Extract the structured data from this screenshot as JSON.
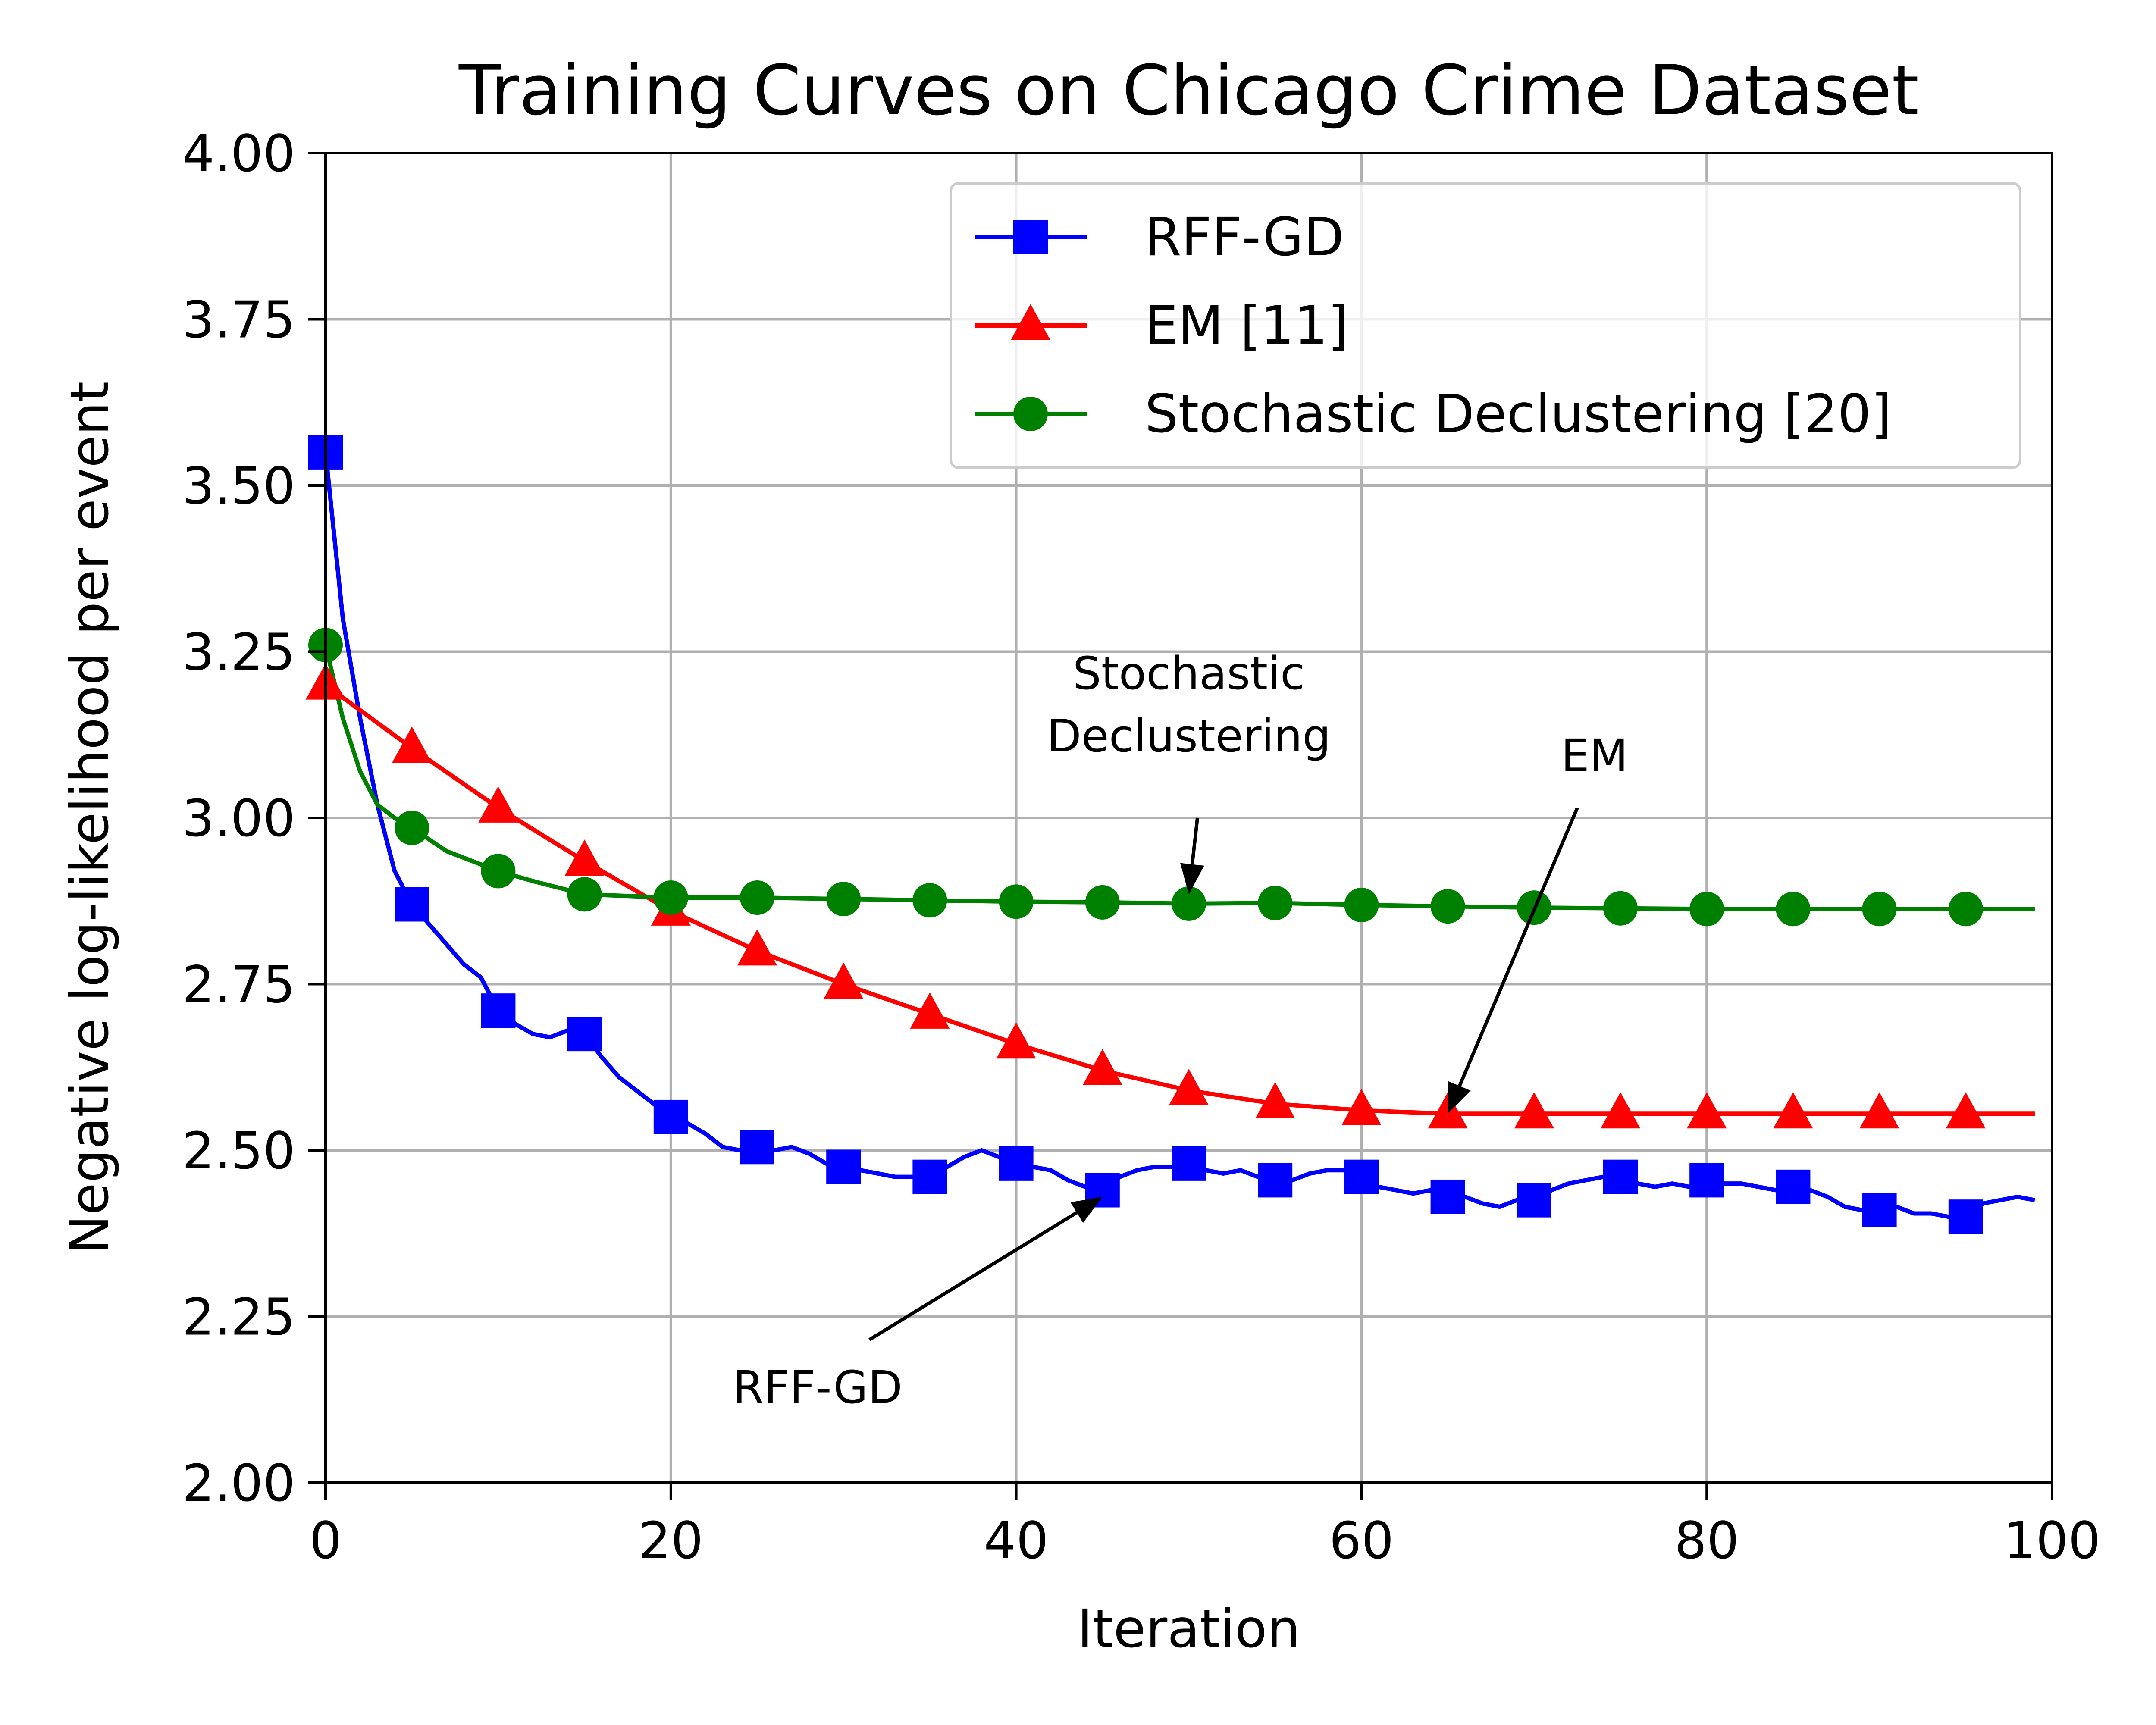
{
  "chart_data": {
    "type": "line",
    "title": "Training Curves on Chicago Crime Dataset",
    "xlabel": "Iteration",
    "ylabel": "Negative log-likelihood per event",
    "xlim": [
      0,
      100
    ],
    "ylim": [
      2.0,
      4.0
    ],
    "xticks": [
      0,
      20,
      40,
      60,
      80,
      100
    ],
    "xtick_labels": [
      "0",
      "20",
      "40",
      "60",
      "80",
      "100"
    ],
    "yticks": [
      2.0,
      2.25,
      2.5,
      2.75,
      3.0,
      3.25,
      3.5,
      3.75,
      4.0
    ],
    "ytick_labels": [
      "2.00",
      "2.25",
      "2.50",
      "2.75",
      "3.00",
      "3.25",
      "3.50",
      "3.75",
      "4.00"
    ],
    "grid": true,
    "legend_position": "top-right",
    "series": [
      {
        "name": "RFF-GD",
        "color": "#0000ff",
        "marker": "square",
        "x": [
          0,
          1,
          2,
          3,
          4,
          5,
          6,
          7,
          8,
          9,
          10,
          11,
          12,
          13,
          14,
          15,
          16,
          17,
          18,
          19,
          20,
          21,
          22,
          23,
          24,
          25,
          26,
          27,
          28,
          29,
          30,
          31,
          32,
          33,
          34,
          35,
          36,
          37,
          38,
          39,
          40,
          41,
          42,
          43,
          44,
          45,
          46,
          47,
          48,
          49,
          50,
          51,
          52,
          53,
          54,
          55,
          56,
          57,
          58,
          59,
          60,
          61,
          62,
          63,
          64,
          65,
          66,
          67,
          68,
          69,
          70,
          71,
          72,
          73,
          74,
          75,
          76,
          77,
          78,
          79,
          80,
          81,
          82,
          83,
          84,
          85,
          86,
          87,
          88,
          89,
          90,
          91,
          92,
          93,
          94,
          95,
          96,
          97,
          98,
          99
        ],
        "y": [
          3.55,
          3.3,
          3.15,
          3.02,
          2.92,
          2.87,
          2.84,
          2.81,
          2.78,
          2.76,
          2.71,
          2.69,
          2.675,
          2.67,
          2.68,
          2.675,
          2.64,
          2.61,
          2.59,
          2.57,
          2.55,
          2.54,
          2.525,
          2.505,
          2.5,
          2.505,
          2.5,
          2.505,
          2.495,
          2.48,
          2.475,
          2.47,
          2.465,
          2.46,
          2.46,
          2.46,
          2.475,
          2.49,
          2.5,
          2.49,
          2.48,
          2.475,
          2.47,
          2.455,
          2.445,
          2.44,
          2.46,
          2.47,
          2.475,
          2.475,
          2.48,
          2.47,
          2.465,
          2.47,
          2.46,
          2.455,
          2.455,
          2.465,
          2.47,
          2.47,
          2.46,
          2.445,
          2.44,
          2.435,
          2.44,
          2.43,
          2.43,
          2.42,
          2.415,
          2.425,
          2.425,
          2.44,
          2.45,
          2.455,
          2.46,
          2.46,
          2.45,
          2.445,
          2.45,
          2.445,
          2.455,
          2.45,
          2.45,
          2.445,
          2.44,
          2.445,
          2.44,
          2.43,
          2.415,
          2.41,
          2.41,
          2.415,
          2.405,
          2.405,
          2.4,
          2.4,
          2.42,
          2.425,
          2.43,
          2.425
        ]
      },
      {
        "name": "EM [11]",
        "color": "#ff0000",
        "marker": "triangle",
        "x": [
          0,
          5,
          10,
          15,
          20,
          25,
          30,
          35,
          40,
          45,
          50,
          55,
          60,
          65,
          70,
          75,
          80,
          85,
          90,
          95,
          99
        ],
        "y": [
          3.2,
          3.105,
          3.015,
          2.935,
          2.86,
          2.8,
          2.75,
          2.705,
          2.66,
          2.62,
          2.59,
          2.57,
          2.56,
          2.555,
          2.555,
          2.555,
          2.555,
          2.555,
          2.555,
          2.555,
          2.555
        ]
      },
      {
        "name": "Stochastic Declustering [20]",
        "color": "#008000",
        "marker": "circle",
        "x": [
          0,
          1,
          2,
          3,
          4,
          5,
          7,
          10,
          12,
          15,
          20,
          25,
          30,
          35,
          40,
          45,
          50,
          55,
          60,
          65,
          70,
          75,
          80,
          85,
          90,
          95,
          99
        ],
        "y": [
          3.26,
          3.15,
          3.07,
          3.02,
          3.0,
          2.985,
          2.95,
          2.92,
          2.905,
          2.885,
          2.88,
          2.88,
          2.878,
          2.876,
          2.874,
          2.873,
          2.871,
          2.872,
          2.869,
          2.867,
          2.865,
          2.864,
          2.863,
          2.863,
          2.863,
          2.863,
          2.863
        ]
      }
    ],
    "annotations": [
      {
        "name": "rff-gd",
        "lines": [
          "RFF-GD"
        ],
        "text_at": [
          28.5,
          2.12
        ],
        "arrow_from": [
          31.5,
          2.215
        ],
        "arrow_to": [
          45,
          2.43
        ]
      },
      {
        "name": "em",
        "lines": [
          "EM"
        ],
        "text_at": [
          73.5,
          3.07
        ],
        "arrow_from": [
          72.5,
          3.015
        ],
        "arrow_to": [
          65,
          2.555
        ]
      },
      {
        "name": "stochastic-declustering",
        "lines": [
          "Stochastic",
          "Declustering"
        ],
        "text_at": [
          50,
          3.1
        ],
        "arrow_from": [
          50.5,
          3.0
        ],
        "arrow_to": [
          50,
          2.885
        ]
      }
    ]
  }
}
